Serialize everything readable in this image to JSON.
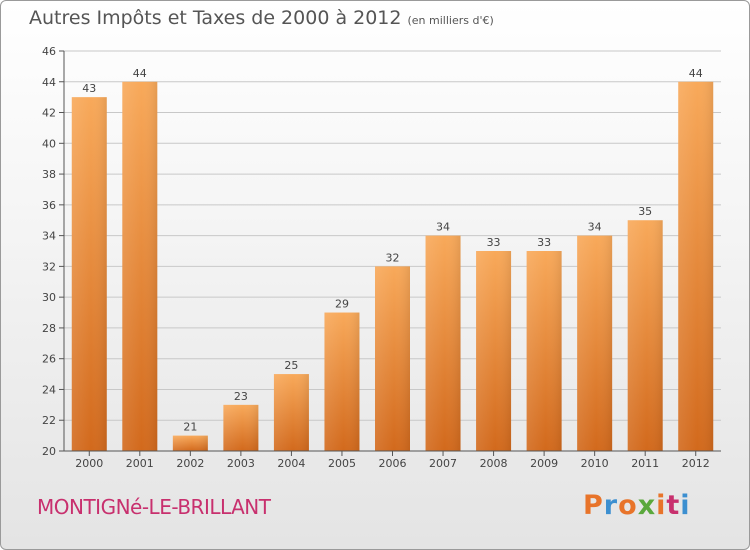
{
  "header": {
    "title": "Autres Impôts et Taxes de 2000 à 2012",
    "unit": "(en milliers d'€)"
  },
  "footer": {
    "commune": "MONTIGNé-LE-BRILLANT",
    "logo": "Proxiti",
    "logo_colors": [
      "#e8742a",
      "#3c8fd0",
      "#e8742a",
      "#5aa83c",
      "#e8742a",
      "#c8306e",
      "#3c8fd0"
    ]
  },
  "colors": {
    "bar_top": "#f8a95a",
    "bar_bottom": "#d2691c",
    "axis": "#555555",
    "grid": "#c8c8c8",
    "title": "#555555",
    "commune": "#c8306e"
  },
  "chart_data": {
    "type": "bar",
    "title": "Autres Impôts et Taxes de 2000 à 2012",
    "subtitle": "(en milliers d'€)",
    "xlabel": "",
    "ylabel": "",
    "categories": [
      "2000",
      "2001",
      "2002",
      "2003",
      "2004",
      "2005",
      "2006",
      "2007",
      "2008",
      "2009",
      "2010",
      "2011",
      "2012"
    ],
    "values": [
      43,
      44,
      21,
      23,
      25,
      29,
      32,
      34,
      33,
      33,
      34,
      35,
      44
    ],
    "ylim": [
      20,
      46
    ],
    "yticks": [
      20,
      22,
      24,
      26,
      28,
      30,
      32,
      34,
      36,
      38,
      40,
      42,
      44,
      46
    ],
    "grid": true,
    "data_labels": true
  }
}
